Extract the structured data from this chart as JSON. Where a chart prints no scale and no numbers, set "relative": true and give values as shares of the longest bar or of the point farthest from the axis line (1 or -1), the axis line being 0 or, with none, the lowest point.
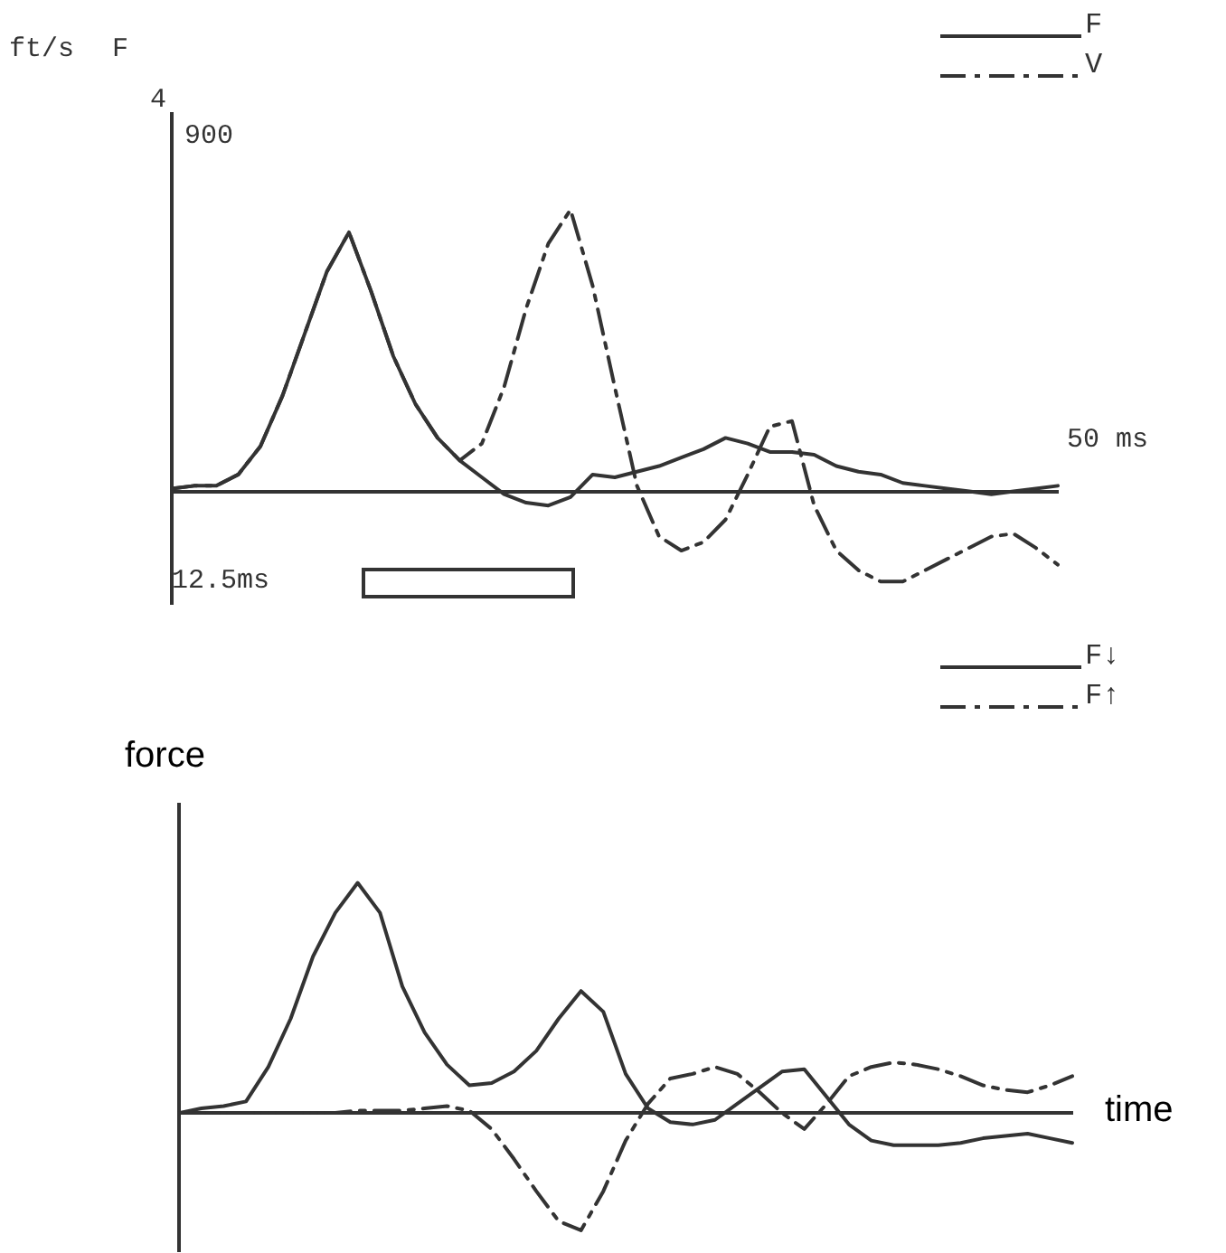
{
  "chart_data": [
    {
      "type": "line",
      "relative": true,
      "legend": "top right",
      "annotations": [
        "ft/s",
        "F",
        "4",
        "900",
        "12.5ms",
        "50 ms"
      ],
      "categories": [
        null,
        null,
        null,
        null,
        null,
        null,
        null,
        null,
        null,
        null,
        null,
        null,
        null,
        null,
        null,
        null,
        null,
        null,
        null,
        null,
        null,
        null,
        null,
        null,
        null,
        null,
        null,
        null,
        null,
        null,
        null,
        null,
        null,
        null,
        null,
        null,
        null,
        null,
        null,
        null,
        null
      ],
      "series": [
        {
          "name": "F",
          "color": "#333333",
          "line_style": "solid",
          "values": [
            0.01,
            0.02,
            0.02,
            0.06,
            0.16,
            0.34,
            0.56,
            0.78,
            0.92,
            0.71,
            0.48,
            0.31,
            0.19,
            0.11,
            0.05,
            -0.01,
            -0.04,
            -0.05,
            -0.02,
            0.06,
            0.05,
            0.07,
            0.09,
            0.12,
            0.15,
            0.19,
            0.17,
            0.14,
            0.14,
            0.13,
            0.09,
            0.07,
            0.06,
            0.03,
            0.02,
            0.01,
            0,
            -0.01,
            0,
            0.01,
            0.02
          ]
        },
        {
          "name": "V",
          "color": "#333333",
          "line_style": "dashed",
          "values": [
            0.01,
            0.02,
            0.02,
            0.06,
            0.16,
            0.34,
            0.56,
            0.78,
            0.92,
            0.71,
            0.48,
            0.31,
            0.19,
            0.11,
            0.17,
            0.37,
            0.65,
            0.88,
            1,
            0.73,
            0.37,
            0.02,
            -0.16,
            -0.21,
            -0.18,
            -0.1,
            0.06,
            0.23,
            0.25,
            -0.05,
            -0.21,
            -0.28,
            -0.32,
            -0.32,
            -0.28,
            -0.24,
            -0.2,
            -0.16,
            -0.15,
            -0.2,
            -0.26
          ]
        }
      ]
    },
    {
      "type": "line",
      "relative": true,
      "xlabel": "time",
      "ylabel": "force",
      "legend": "top right",
      "categories": [
        null,
        null,
        null,
        null,
        null,
        null,
        null,
        null,
        null,
        null,
        null,
        null,
        null,
        null,
        null,
        null,
        null,
        null,
        null,
        null,
        null,
        null,
        null,
        null,
        null,
        null,
        null,
        null,
        null,
        null,
        null,
        null,
        null,
        null,
        null,
        null,
        null,
        null,
        null,
        null,
        null
      ],
      "series": [
        {
          "name": "F↓",
          "color": "#333333",
          "line_style": "solid",
          "values": [
            0,
            0.02,
            0.03,
            0.05,
            0.2,
            0.41,
            0.68,
            0.87,
            1,
            0.87,
            0.55,
            0.35,
            0.21,
            0.12,
            0.13,
            0.18,
            0.27,
            0.41,
            0.53,
            0.44,
            0.17,
            0.02,
            -0.04,
            -0.05,
            -0.03,
            0.04,
            0.11,
            0.18,
            0.19,
            0.07,
            -0.05,
            -0.12,
            -0.14,
            -0.14,
            -0.14,
            -0.13,
            -0.11,
            -0.1,
            -0.09,
            -0.11,
            -0.13
          ]
        },
        {
          "name": "F↑",
          "color": "#333333",
          "line_style": "dashed",
          "values": [
            0,
            0,
            0,
            0,
            0,
            0,
            0,
            0,
            0.01,
            0.01,
            0.01,
            0.02,
            0.03,
            0.01,
            -0.07,
            -0.2,
            -0.34,
            -0.47,
            -0.51,
            -0.34,
            -0.12,
            0.04,
            0.15,
            0.17,
            0.2,
            0.17,
            0.09,
            0,
            -0.07,
            0.04,
            0.16,
            0.2,
            0.22,
            0.21,
            0.19,
            0.16,
            0.12,
            0.1,
            0.09,
            0.12,
            0.16
          ]
        }
      ]
    }
  ]
}
